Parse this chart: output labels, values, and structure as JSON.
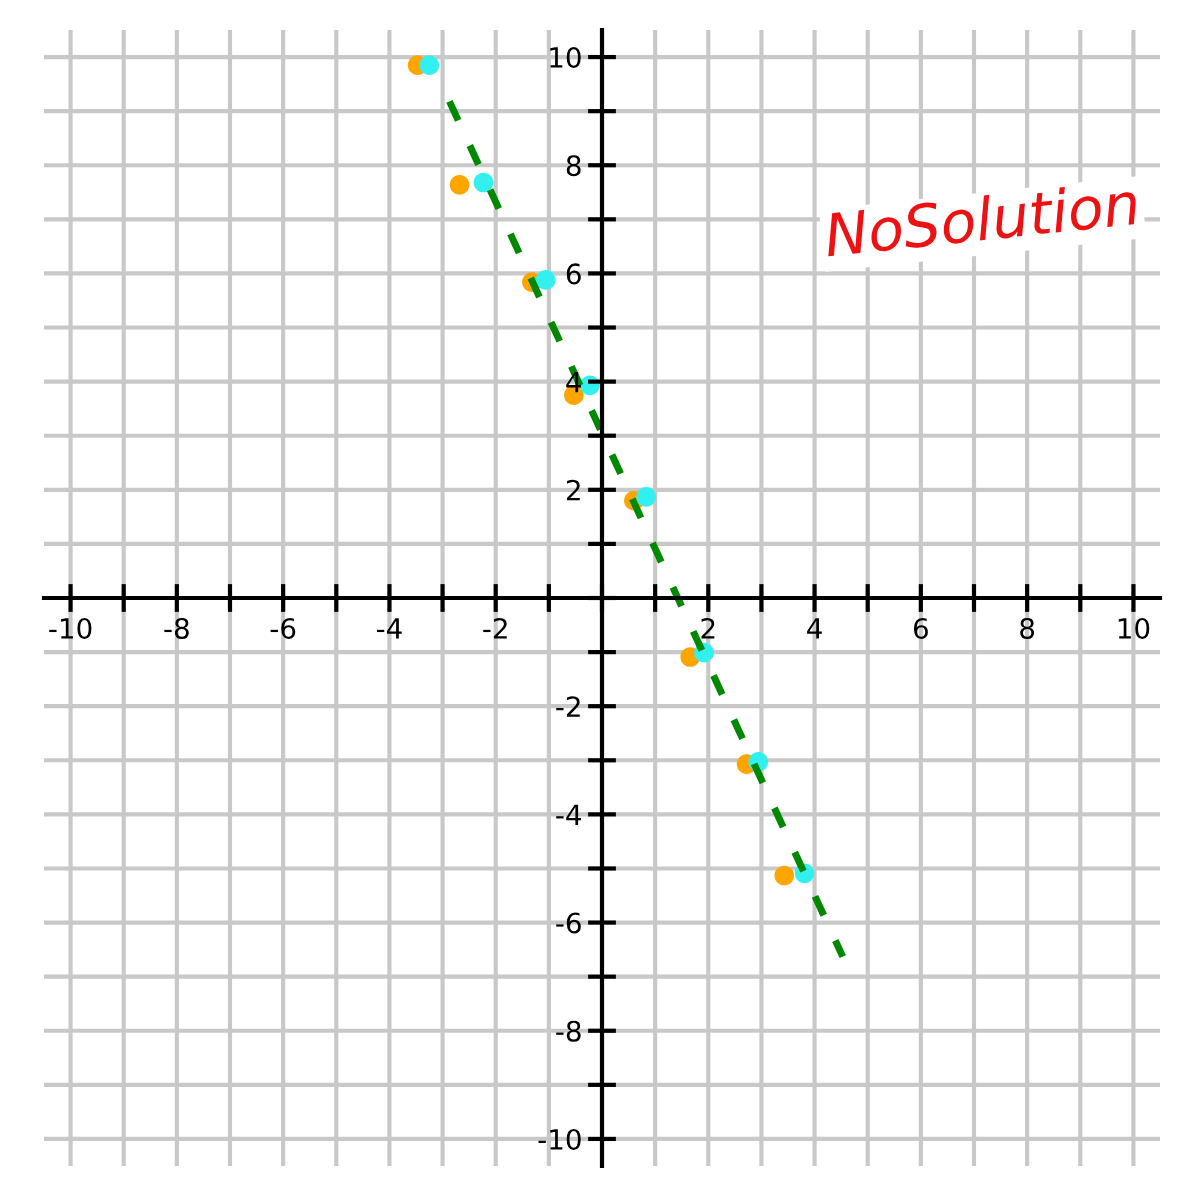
{
  "chart_data": {
    "type": "scatter",
    "annotations": [
      "NoSolution"
    ],
    "series": [
      {
        "type": "scatter",
        "color": "#ffa500",
        "x": [
          -3.47,
          -2.68,
          -1.32,
          -0.53,
          0.6,
          1.66,
          2.72,
          3.43
        ],
        "values": [
          9.85,
          7.64,
          5.84,
          3.75,
          1.8,
          -1.09,
          -3.07,
          -5.13
        ],
        "marker": "circle"
      },
      {
        "type": "scatter",
        "color": "#33f0f0",
        "x": [
          -3.25,
          -2.23,
          -1.06,
          -0.23,
          0.83,
          1.92,
          2.94,
          3.81
        ],
        "values": [
          9.85,
          7.68,
          5.88,
          3.93,
          1.87,
          -1.01,
          -3.03,
          -5.09
        ],
        "marker": "circle"
      },
      {
        "type": "line",
        "color": "#008800",
        "x": [
          -2.87,
          4.53
        ],
        "values": [
          9.18,
          -6.63
        ],
        "line_style": "dashed",
        "marker": "none"
      }
    ],
    "xlim": [
      -10.5,
      10.5
    ],
    "ylim": [
      -10.5,
      10.5
    ],
    "xticks": [
      -10,
      {
        "value": -9,
        "label": null
      },
      -8,
      {
        "value": -7,
        "label": null
      },
      -6,
      {
        "value": -5,
        "label": null
      },
      -4,
      {
        "value": -3,
        "label": null
      },
      -2,
      {
        "value": -1,
        "label": null
      },
      {
        "value": 0,
        "label": null
      },
      {
        "value": 1,
        "label": null
      },
      2,
      {
        "value": 3,
        "label": null
      },
      4,
      {
        "value": 5,
        "label": null
      },
      6,
      {
        "value": 7,
        "label": null
      },
      8,
      {
        "value": 9,
        "label": null
      },
      10
    ],
    "yticks": [
      -10,
      {
        "value": -9,
        "label": null
      },
      -8,
      {
        "value": -7,
        "label": null
      },
      -6,
      {
        "value": -5,
        "label": null
      },
      -4,
      {
        "value": -3,
        "label": null
      },
      -2,
      {
        "value": -1,
        "label": null
      },
      {
        "value": 0,
        "label": null
      },
      {
        "value": 1,
        "label": null
      },
      2,
      {
        "value": 3,
        "label": null
      },
      4,
      {
        "value": 5,
        "label": null
      },
      6,
      {
        "value": 7,
        "label": null
      },
      8,
      {
        "value": 9,
        "label": null
      },
      10
    ],
    "grid": true
  }
}
